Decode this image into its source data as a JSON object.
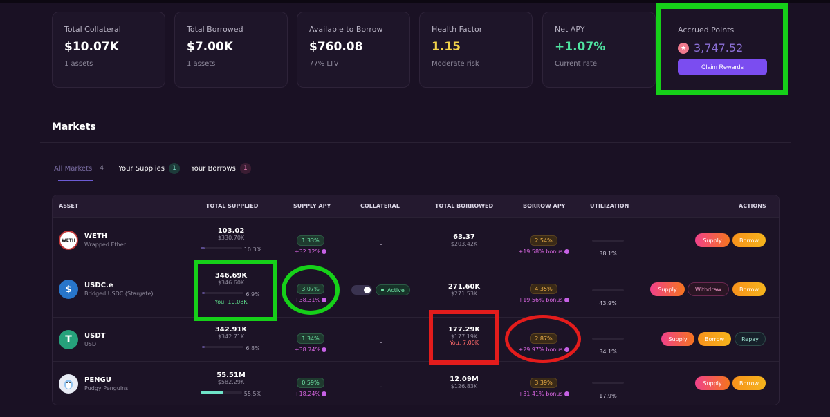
{
  "stats": [
    {
      "label": "Total Collateral",
      "value": "$10.07K",
      "sub": "1 assets"
    },
    {
      "label": "Total Borrowed",
      "value": "$7.00K",
      "sub": "1 assets"
    },
    {
      "label": "Available to Borrow",
      "value": "$760.08",
      "sub": "77% LTV"
    },
    {
      "label": "Health Factor",
      "value": "1.15",
      "sub": "Moderate risk"
    },
    {
      "label": "Net APY",
      "value": "+1.07%",
      "sub": "Current rate"
    }
  ],
  "points": {
    "label": "Accrued Points",
    "value": "3,747.52",
    "claim_label": "Claim Rewards"
  },
  "markets": {
    "title": "Markets",
    "tabs": [
      {
        "label": "All Markets",
        "count": "4"
      },
      {
        "label": "Your Supplies",
        "count": "1"
      },
      {
        "label": "Your Borrows",
        "count": "1"
      }
    ],
    "headers": {
      "asset": "ASSET",
      "supplied": "TOTAL SUPPLIED",
      "supply_apy": "SUPPLY APY",
      "collateral": "COLLATERAL",
      "borrowed": "TOTAL BORROWED",
      "borrow_apy": "BORROW APY",
      "utilization": "UTILIZATION",
      "actions": "ACTIONS"
    },
    "rows": [
      {
        "symbol": "WETH",
        "name": "Wrapped Ether",
        "logo_text": "WETH",
        "supplied": "103.02",
        "supplied_usd": "$330.70K",
        "supplied_pct": "10.3%",
        "supplied_fill": 0.103,
        "supply_apy": "1.33%",
        "supply_bonus": "+32.12%",
        "collateral": "–",
        "borrowed": "63.37",
        "borrowed_usd": "$203.42K",
        "borrow_apy": "2.54%",
        "borrow_bonus": "+19.58% bonus",
        "utilization": "38.1%",
        "actions": {
          "supply": "Supply",
          "borrow": "Borrow"
        }
      },
      {
        "symbol": "USDC.e",
        "name": "Bridged USDC (Stargate)",
        "logo_text": "$",
        "supplied": "346.69K",
        "supplied_usd": "$346.60K",
        "supplied_pct": "6.9%",
        "supplied_fill": 0.069,
        "you_supplied": "You: 10.08K",
        "supply_apy": "3.07%",
        "supply_bonus": "+38.31%",
        "collateral_status": "Active",
        "borrowed": "271.60K",
        "borrowed_usd": "$271.53K",
        "borrow_apy": "4.35%",
        "borrow_bonus": "+19.56% bonus",
        "utilization": "43.9%",
        "actions": {
          "supply": "Supply",
          "withdraw": "Withdraw",
          "borrow": "Borrow"
        }
      },
      {
        "symbol": "USDT",
        "name": "USDT",
        "logo_text": "T",
        "supplied": "342.91K",
        "supplied_usd": "$342.71K",
        "supplied_pct": "6.8%",
        "supplied_fill": 0.068,
        "supply_apy": "1.34%",
        "supply_bonus": "+38.74%",
        "collateral": "–",
        "borrowed": "177.29K",
        "borrowed_usd": "$177.19K",
        "you_borrowed": "You: 7.00K",
        "borrow_apy": "2.87%",
        "borrow_bonus": "+29.97% bonus",
        "utilization": "34.1%",
        "actions": {
          "supply": "Supply",
          "borrow": "Borrow",
          "repay": "Repay"
        }
      },
      {
        "symbol": "PENGU",
        "name": "Pudgy Penguins",
        "logo_text": "",
        "supplied": "55.51M",
        "supplied_usd": "$582.29K",
        "supplied_pct": "55.5%",
        "supplied_fill": 0.555,
        "supply_apy": "0.59%",
        "supply_bonus": "+18.24%",
        "collateral": "–",
        "borrowed": "12.09M",
        "borrowed_usd": "$126.83K",
        "borrow_apy": "3.39%",
        "borrow_bonus": "+31.41% bonus",
        "utilization": "17.9%",
        "actions": {
          "supply": "Supply",
          "borrow": "Borrow"
        }
      }
    ]
  },
  "colors": {
    "accent": "#7b4df0",
    "highlight_green": "#16d019",
    "highlight_red": "#e31c1c",
    "positive": "#4fe3a0",
    "warning": "#f3d34a"
  }
}
